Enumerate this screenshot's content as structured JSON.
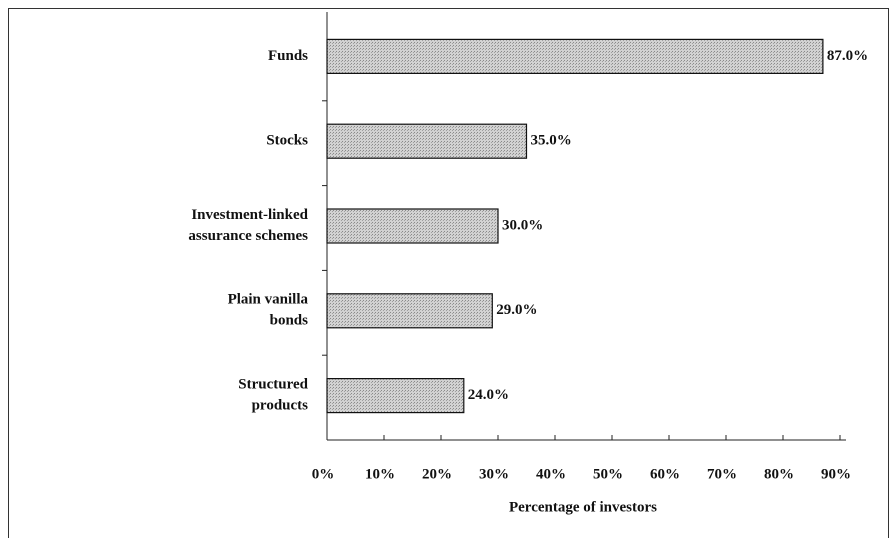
{
  "chart_data": {
    "type": "bar",
    "orientation": "horizontal",
    "categories": [
      [
        "Funds"
      ],
      [
        "Stocks"
      ],
      [
        "Investment-linked",
        "assurance schemes"
      ],
      [
        "Plain vanilla",
        "bonds"
      ],
      [
        "Structured",
        "products"
      ]
    ],
    "values": [
      87.0,
      35.0,
      30.0,
      29.0,
      24.0
    ],
    "value_labels": [
      "87.0%",
      "35.0%",
      "30.0%",
      "29.0%",
      "24.0%"
    ],
    "color": "#c8c8c8",
    "xlabel": "Percentage of investors",
    "xlim": [
      0,
      90
    ],
    "xticks": [
      {
        "value": 0,
        "label": "0%"
      },
      {
        "value": 10,
        "label": "10%"
      },
      {
        "value": 20,
        "label": "20%"
      },
      {
        "value": 30,
        "label": "30%"
      },
      {
        "value": 40,
        "label": "40%"
      },
      {
        "value": 50,
        "label": "50%"
      },
      {
        "value": 60,
        "label": "60%"
      },
      {
        "value": 70,
        "label": "70%"
      },
      {
        "value": 80,
        "label": "80%"
      },
      {
        "value": 90,
        "label": "90%"
      }
    ],
    "grid": false
  }
}
